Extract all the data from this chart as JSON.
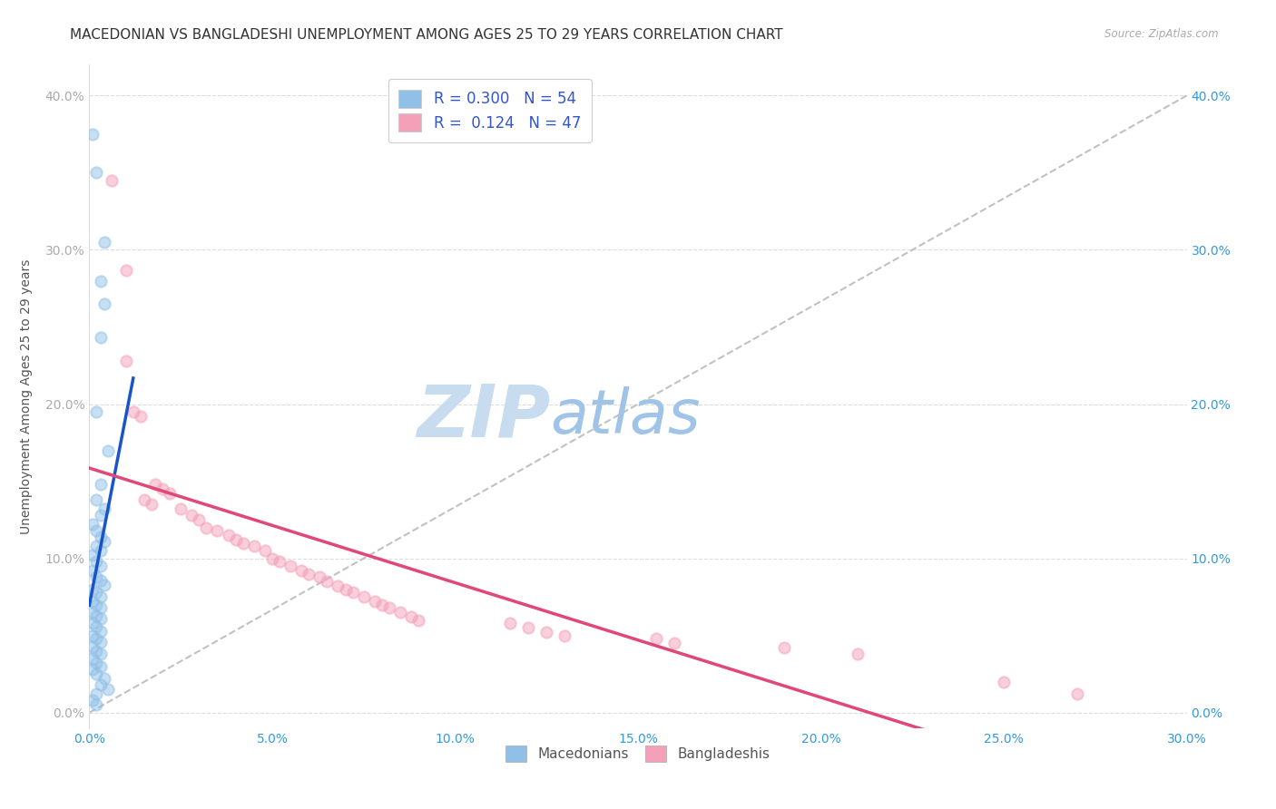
{
  "title": "MACEDONIAN VS BANGLADESHI UNEMPLOYMENT AMONG AGES 25 TO 29 YEARS CORRELATION CHART",
  "source": "Source: ZipAtlas.com",
  "xlabel_ticks": [
    "0.0%",
    "5.0%",
    "10.0%",
    "15.0%",
    "20.0%",
    "25.0%",
    "30.0%"
  ],
  "ylabel_ticks": [
    "0.0%",
    "10.0%",
    "20.0%",
    "30.0%",
    "40.0%"
  ],
  "ylabel_label": "Unemployment Among Ages 25 to 29 years",
  "xlim": [
    0.0,
    0.3
  ],
  "ylim": [
    -0.01,
    0.42
  ],
  "legend_macedonian_R": "0.300",
  "legend_macedonian_N": "54",
  "legend_bangladeshi_R": "0.124",
  "legend_bangladeshi_N": "47",
  "macedonian_color": "#90C0E8",
  "bangladeshi_color": "#F4A0B8",
  "macedonian_line_color": "#1A55C8",
  "bangladeshi_line_color": "#E04878",
  "trend_line_color": "#BBBBBB",
  "macedonian_scatter": [
    [
      0.001,
      0.375
    ],
    [
      0.002,
      0.35
    ],
    [
      0.004,
      0.305
    ],
    [
      0.003,
      0.28
    ],
    [
      0.004,
      0.265
    ],
    [
      0.003,
      0.243
    ],
    [
      0.002,
      0.195
    ],
    [
      0.005,
      0.17
    ],
    [
      0.003,
      0.148
    ],
    [
      0.002,
      0.138
    ],
    [
      0.004,
      0.132
    ],
    [
      0.003,
      0.128
    ],
    [
      0.001,
      0.122
    ],
    [
      0.002,
      0.118
    ],
    [
      0.003,
      0.114
    ],
    [
      0.004,
      0.111
    ],
    [
      0.002,
      0.108
    ],
    [
      0.003,
      0.105
    ],
    [
      0.001,
      0.102
    ],
    [
      0.002,
      0.098
    ],
    [
      0.003,
      0.095
    ],
    [
      0.001,
      0.092
    ],
    [
      0.002,
      0.088
    ],
    [
      0.003,
      0.086
    ],
    [
      0.004,
      0.083
    ],
    [
      0.001,
      0.08
    ],
    [
      0.002,
      0.078
    ],
    [
      0.003,
      0.075
    ],
    [
      0.001,
      0.072
    ],
    [
      0.002,
      0.07
    ],
    [
      0.003,
      0.068
    ],
    [
      0.001,
      0.065
    ],
    [
      0.002,
      0.063
    ],
    [
      0.003,
      0.061
    ],
    [
      0.001,
      0.058
    ],
    [
      0.002,
      0.056
    ],
    [
      0.003,
      0.053
    ],
    [
      0.001,
      0.05
    ],
    [
      0.002,
      0.048
    ],
    [
      0.003,
      0.046
    ],
    [
      0.001,
      0.043
    ],
    [
      0.002,
      0.04
    ],
    [
      0.003,
      0.038
    ],
    [
      0.001,
      0.035
    ],
    [
      0.002,
      0.032
    ],
    [
      0.003,
      0.03
    ],
    [
      0.001,
      0.028
    ],
    [
      0.002,
      0.025
    ],
    [
      0.004,
      0.022
    ],
    [
      0.003,
      0.018
    ],
    [
      0.005,
      0.015
    ],
    [
      0.002,
      0.012
    ],
    [
      0.001,
      0.008
    ],
    [
      0.002,
      0.005
    ]
  ],
  "bangladeshi_scatter": [
    [
      0.006,
      0.345
    ],
    [
      0.01,
      0.287
    ],
    [
      0.01,
      0.228
    ],
    [
      0.012,
      0.195
    ],
    [
      0.014,
      0.192
    ],
    [
      0.018,
      0.148
    ],
    [
      0.02,
      0.145
    ],
    [
      0.022,
      0.142
    ],
    [
      0.015,
      0.138
    ],
    [
      0.017,
      0.135
    ],
    [
      0.025,
      0.132
    ],
    [
      0.028,
      0.128
    ],
    [
      0.03,
      0.125
    ],
    [
      0.032,
      0.12
    ],
    [
      0.035,
      0.118
    ],
    [
      0.038,
      0.115
    ],
    [
      0.04,
      0.112
    ],
    [
      0.042,
      0.11
    ],
    [
      0.045,
      0.108
    ],
    [
      0.048,
      0.105
    ],
    [
      0.05,
      0.1
    ],
    [
      0.052,
      0.098
    ],
    [
      0.055,
      0.095
    ],
    [
      0.058,
      0.092
    ],
    [
      0.06,
      0.09
    ],
    [
      0.063,
      0.088
    ],
    [
      0.065,
      0.085
    ],
    [
      0.068,
      0.082
    ],
    [
      0.07,
      0.08
    ],
    [
      0.072,
      0.078
    ],
    [
      0.075,
      0.075
    ],
    [
      0.078,
      0.072
    ],
    [
      0.08,
      0.07
    ],
    [
      0.082,
      0.068
    ],
    [
      0.085,
      0.065
    ],
    [
      0.088,
      0.062
    ],
    [
      0.09,
      0.06
    ],
    [
      0.115,
      0.058
    ],
    [
      0.12,
      0.055
    ],
    [
      0.125,
      0.052
    ],
    [
      0.13,
      0.05
    ],
    [
      0.155,
      0.048
    ],
    [
      0.16,
      0.045
    ],
    [
      0.19,
      0.042
    ],
    [
      0.21,
      0.038
    ],
    [
      0.25,
      0.02
    ],
    [
      0.27,
      0.012
    ]
  ],
  "background_color": "#FFFFFF",
  "watermark_zip_color": "#C8DCF0",
  "watermark_atlas_color": "#A0C4E8",
  "watermark_fontsize": 58,
  "grid_color": "#DDDDDD",
  "title_fontsize": 11,
  "axis_label_fontsize": 10,
  "tick_fontsize": 10,
  "legend_fontsize": 12,
  "scatter_size": 80,
  "scatter_alpha": 0.5,
  "scatter_linewidth": 1.5
}
